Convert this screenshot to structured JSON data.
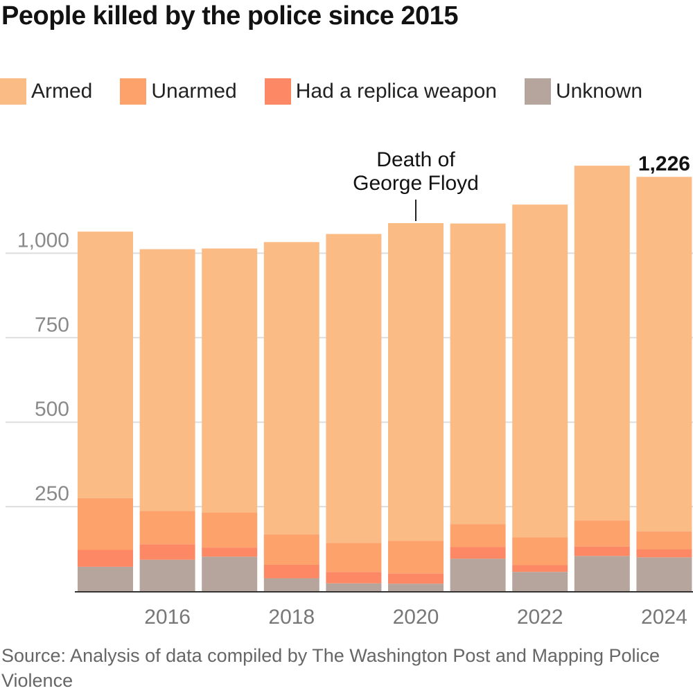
{
  "title": "People killed by the police since 2015",
  "legend": [
    {
      "label": "Armed",
      "color": "#fbbb85"
    },
    {
      "label": "Unarmed",
      "color": "#fca26a"
    },
    {
      "label": "Had a replica weapon",
      "color": "#fd8866"
    },
    {
      "label": "Unknown",
      "color": "#b6a59c"
    }
  ],
  "source": "Source: Analysis of data compiled by The Washington Post and Mapping Police Violence",
  "chart_data": {
    "type": "bar",
    "stacked": true,
    "categories": [
      "2015",
      "2016",
      "2017",
      "2018",
      "2019",
      "2020",
      "2021",
      "2022",
      "2023",
      "2024"
    ],
    "x_tick_labels": [
      "2016",
      "2018",
      "2020",
      "2022",
      "2024"
    ],
    "y_ticks": [
      250,
      500,
      750,
      1000
    ],
    "y_tick_labels": [
      "250",
      "500",
      "750",
      "1,000"
    ],
    "ylim": [
      0,
      1250
    ],
    "grid": "horizontal",
    "series": [
      {
        "name": "Unknown",
        "color": "#b6a59c",
        "values": [
          72,
          93,
          102,
          38,
          23,
          22,
          96,
          57,
          104,
          100
        ]
      },
      {
        "name": "Had a replica weapon",
        "color": "#fd8866",
        "values": [
          50,
          46,
          27,
          40,
          34,
          30,
          35,
          20,
          28,
          24
        ]
      },
      {
        "name": "Unarmed",
        "color": "#fca26a",
        "values": [
          153,
          98,
          104,
          90,
          86,
          97,
          67,
          82,
          77,
          53
        ]
      },
      {
        "name": "Armed",
        "color": "#fbbb85",
        "values": [
          789,
          775,
          781,
          865,
          914,
          940,
          890,
          985,
          1050,
          1049
        ]
      }
    ],
    "data_labels": [
      {
        "category": "2024",
        "text": "1,226"
      }
    ],
    "annotations": [
      {
        "category": "2020",
        "text_lines": [
          "Death of",
          "George Floyd"
        ]
      }
    ]
  }
}
